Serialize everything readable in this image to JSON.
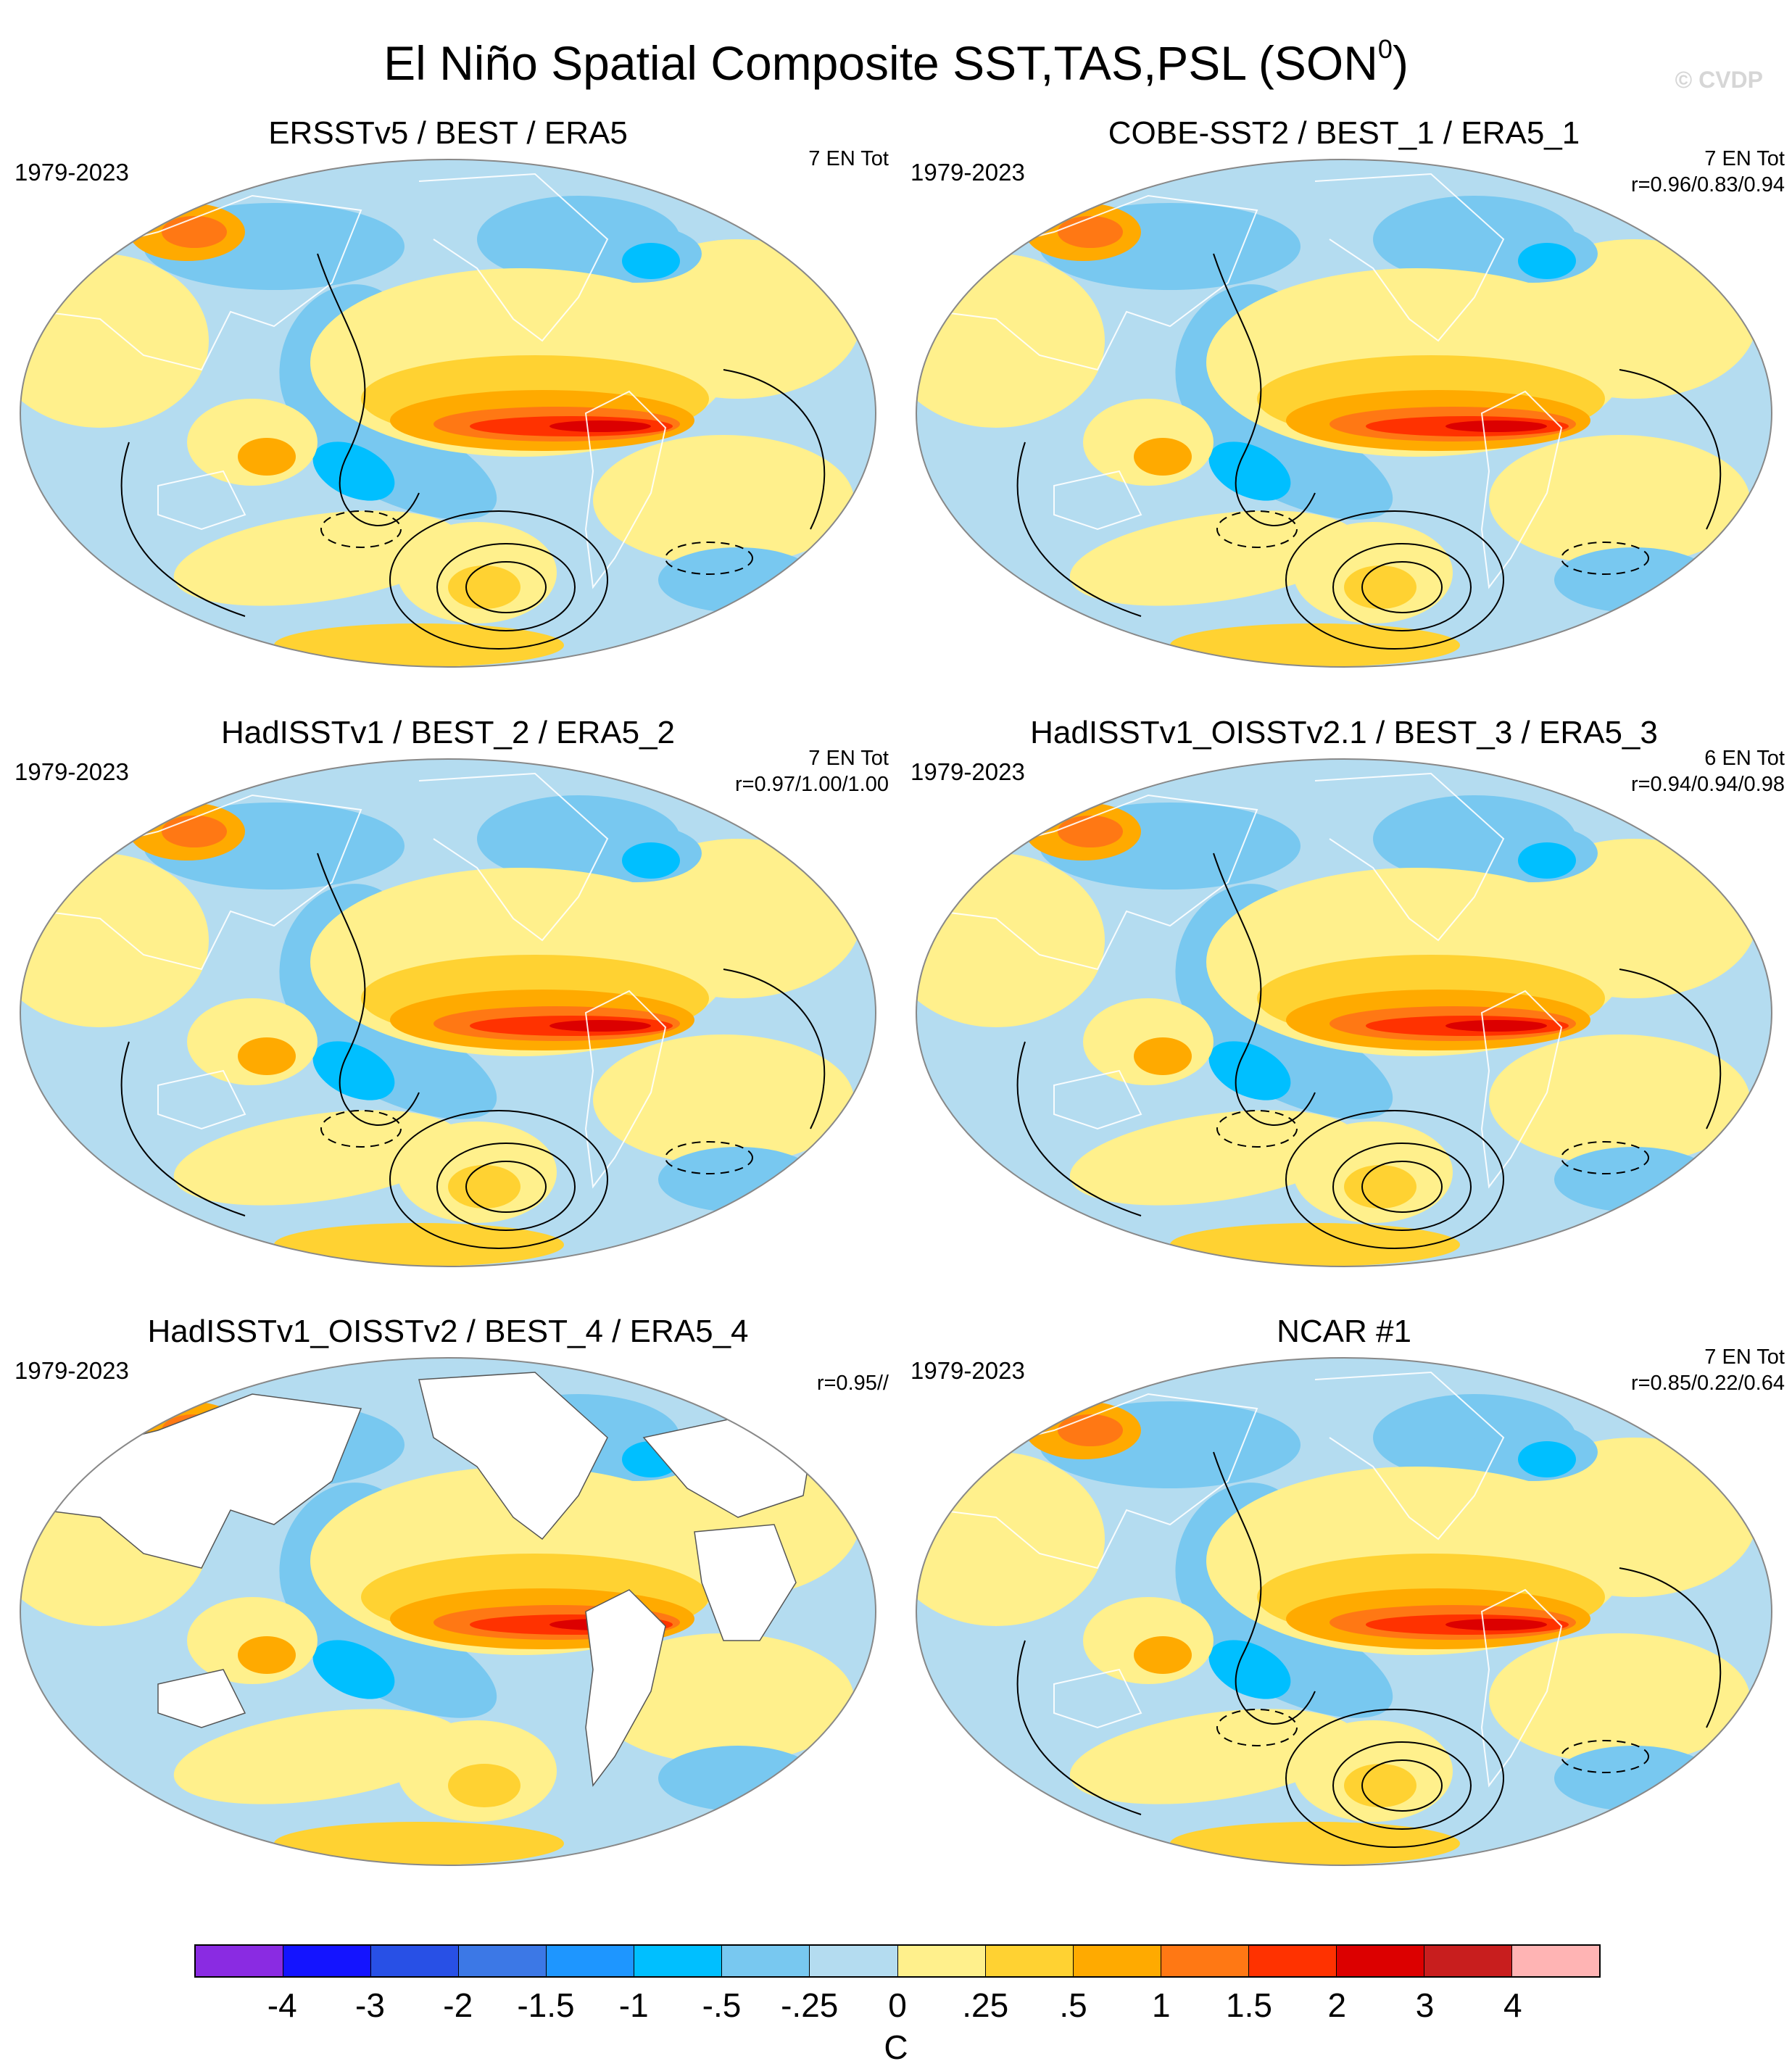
{
  "figure": {
    "title_main": "El Niño Spatial Composite SST,TAS,PSL (SON",
    "title_sup": "0",
    "title_close": ")",
    "watermark": "© CVDP"
  },
  "panels": [
    {
      "title": "ERSSTv5 / BEST / ERA5",
      "years": "1979-2023",
      "count": "7 EN Tot",
      "corr": "",
      "land_masked": false
    },
    {
      "title": "COBE-SST2 / BEST_1 / ERA5_1",
      "years": "1979-2023",
      "count": "7 EN Tot",
      "corr": "r=0.96/0.83/0.94",
      "land_masked": false
    },
    {
      "title": "HadISSTv1 / BEST_2 / ERA5_2",
      "years": "1979-2023",
      "count": "7 EN Tot",
      "corr": "r=0.97/1.00/1.00",
      "land_masked": false
    },
    {
      "title": "HadISSTv1_OISSTv2.1 / BEST_3 / ERA5_3",
      "years": "1979-2023",
      "count": "6 EN Tot",
      "corr": "r=0.94/0.94/0.98",
      "land_masked": false
    },
    {
      "title": "HadISSTv1_OISSTv2 / BEST_4 / ERA5_4",
      "years": "1979-2023",
      "count": "",
      "corr": "r=0.95//",
      "land_masked": true
    },
    {
      "title": "NCAR #1",
      "years": "1979-2023",
      "count": "7 EN Tot",
      "corr": "r=0.85/0.22/0.64",
      "land_masked": false
    }
  ],
  "colorbar": {
    "labels": [
      "-4",
      "-3",
      "-2",
      "-1.5",
      "-1",
      "-.5",
      "-.25",
      "0",
      ".25",
      ".5",
      "1",
      "1.5",
      "2",
      "3",
      "4"
    ],
    "colors": [
      "#8a2be2",
      "#1414ff",
      "#2850e6",
      "#3c78e6",
      "#1e96ff",
      "#00bfff",
      "#78c8f0",
      "#b4dcf0",
      "#fff08c",
      "#ffd232",
      "#ffaa00",
      "#ff7814",
      "#ff3200",
      "#dc0000",
      "#c81e1e",
      "#ffb4b4"
    ],
    "unit": "C"
  }
}
